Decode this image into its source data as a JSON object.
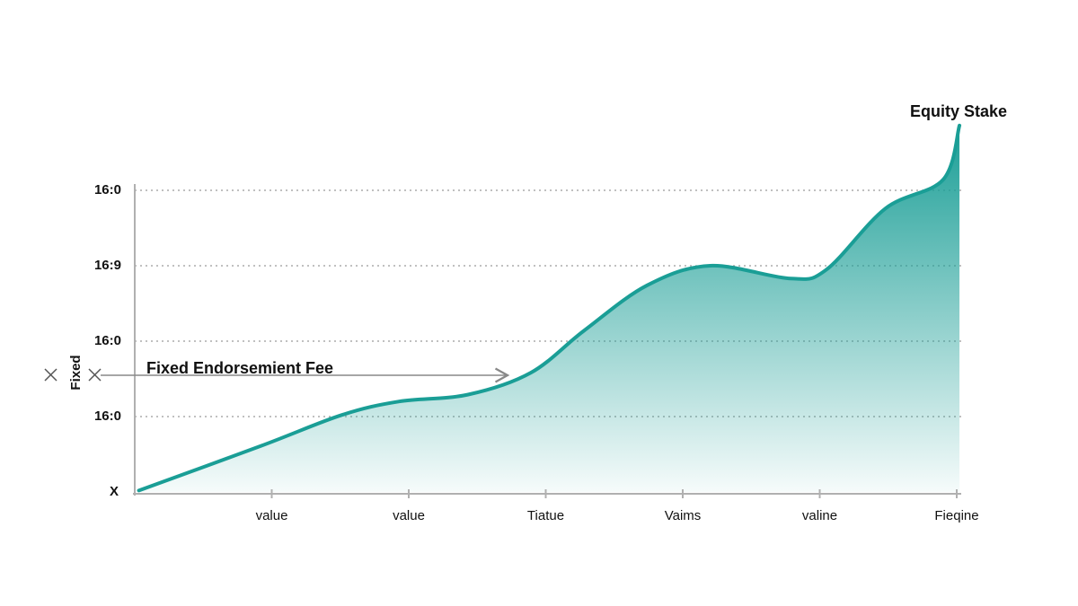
{
  "chart_data": {
    "type": "area",
    "ylabel": "Fixed",
    "annotations": [
      "Equity Stake",
      "Fixed Endorsemient Fee"
    ],
    "x": [
      0.03,
      0.92,
      1.51,
      1.93,
      2.43,
      2.89,
      3.28,
      3.74,
      4.2,
      4.79,
      5.05,
      5.48,
      5.9,
      6.02
    ],
    "series": [
      {
        "color": "#1a9e96",
        "values": [
          0.02,
          0.61,
          1.02,
          1.2,
          1.29,
          1.58,
          2.14,
          2.74,
          3.0,
          2.83,
          2.95,
          3.76,
          4.14,
          4.86
        ]
      }
    ],
    "xlim": [
      0,
      6
    ],
    "xticks": [
      {
        "value": 1,
        "label": "value"
      },
      {
        "value": 2,
        "label": "value"
      },
      {
        "value": 3,
        "label": "Tiatue"
      },
      {
        "value": 4,
        "label": "Vaims"
      },
      {
        "value": 5,
        "label": "valine"
      },
      {
        "value": 6,
        "label": "Fieqine"
      }
    ],
    "ylim": [
      0,
      5
    ],
    "yticks": [
      {
        "value": 0,
        "label": "X"
      },
      {
        "value": 1,
        "label": "16:0"
      },
      {
        "value": 2,
        "label": "16:0"
      },
      {
        "value": 3,
        "label": "16:9"
      },
      {
        "value": 4,
        "label": "16:0"
      }
    ],
    "grid": true
  }
}
